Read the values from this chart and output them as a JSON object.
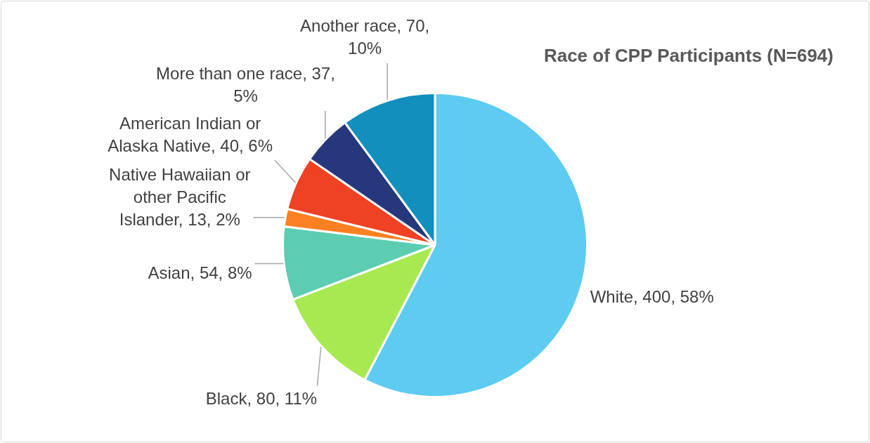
{
  "chart_data": {
    "type": "pie",
    "title": "Race of CPP Participants (N=694)",
    "categories": [
      "White",
      "Black",
      "Asian",
      "Native Hawaiian or other Pacific Islander",
      "American Indian or Alaska Native",
      "More than one race",
      "Another race"
    ],
    "values": [
      400,
      80,
      54,
      13,
      40,
      37,
      70
    ],
    "colors": [
      "#5ecbf1",
      "#a8e951",
      "#5ccdb2",
      "#fd8122",
      "#ef4123",
      "#27377c",
      "#128fbc"
    ],
    "value_labels": [
      "400, 58%",
      "80, 11%",
      "54, 8%",
      "13, 2%",
      "40, 6%",
      "37, 5%",
      "70, 10%"
    ]
  }
}
